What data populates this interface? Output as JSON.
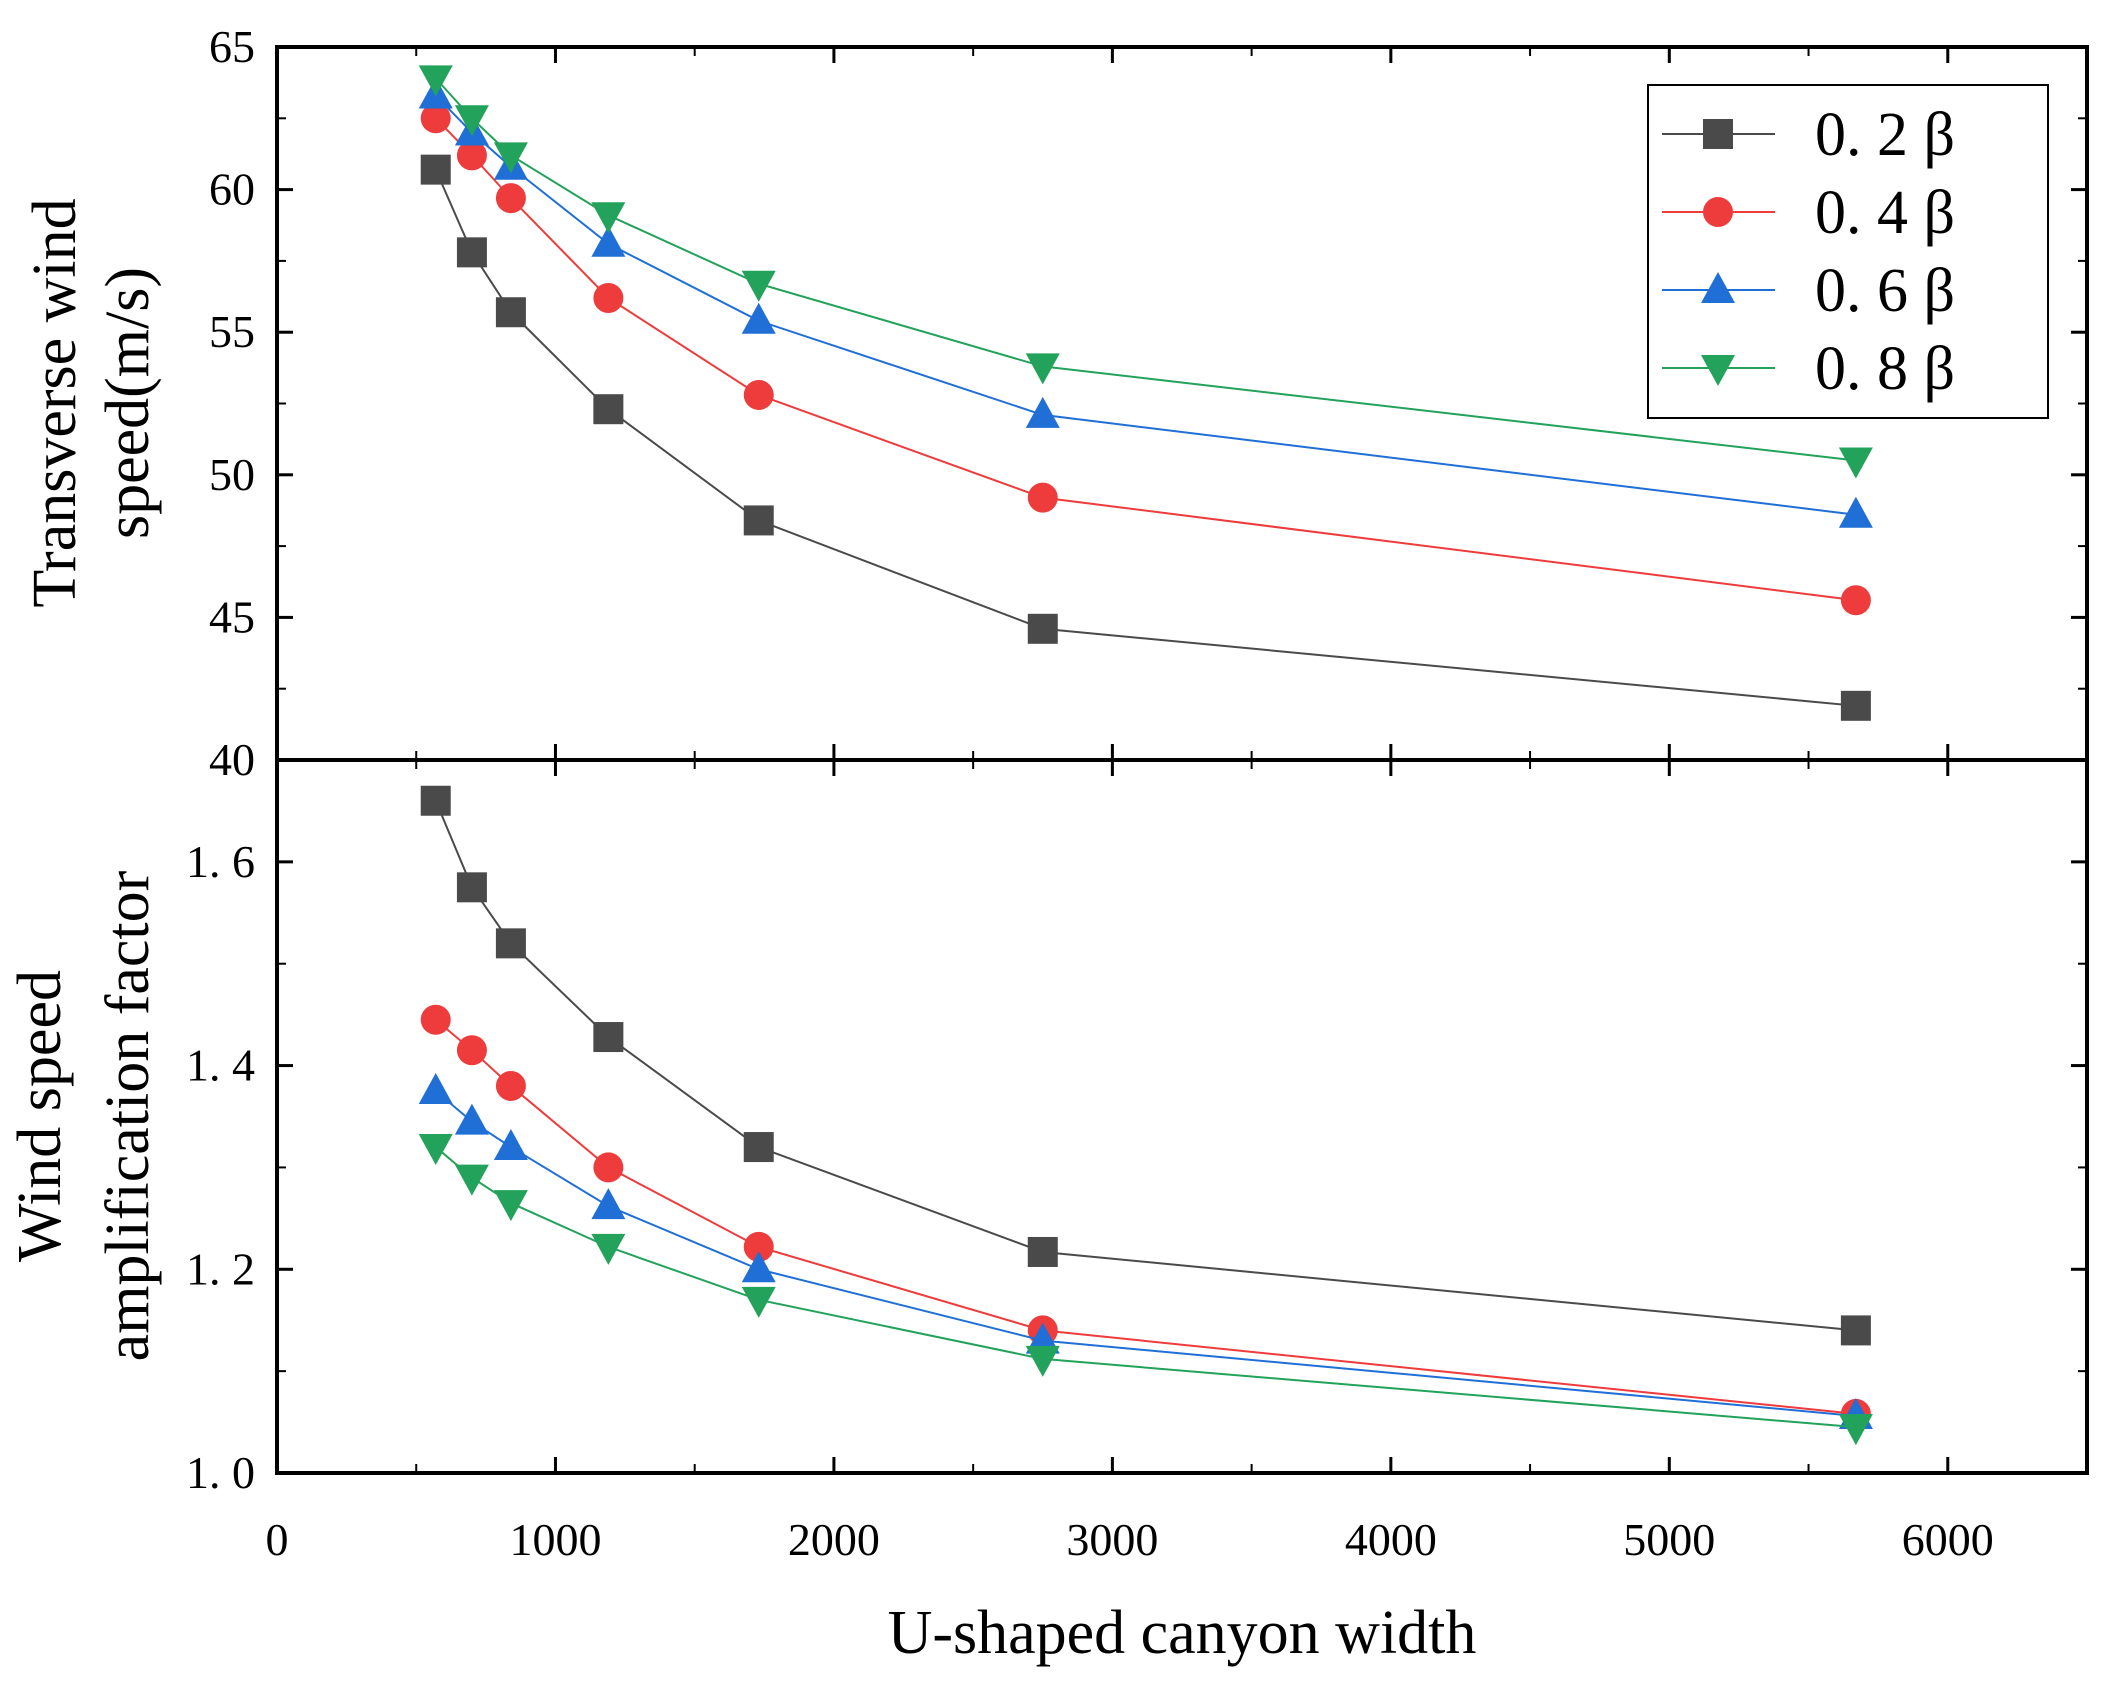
{
  "chart_data": [
    {
      "type": "line",
      "panel": "top",
      "ylabel_lines": [
        "Transverse wind",
        "speed(m/s)"
      ],
      "ylim": [
        40,
        65
      ],
      "yticks": [
        40,
        45,
        50,
        55,
        60,
        65
      ],
      "x": [
        570,
        700,
        840,
        1190,
        1730,
        2750,
        5670
      ],
      "series": [
        {
          "name": "0.2β",
          "color": "#4a4a4a",
          "marker": "square",
          "values": [
            60.7,
            57.8,
            55.7,
            52.3,
            48.4,
            44.6,
            41.9
          ]
        },
        {
          "name": "0.4β",
          "color": "#ee3b3b",
          "marker": "circle",
          "values": [
            62.5,
            61.2,
            59.7,
            56.2,
            52.8,
            49.2,
            45.6
          ]
        },
        {
          "name": "0.6β",
          "color": "#1f6fd6",
          "marker": "triangle-up",
          "values": [
            63.3,
            62.0,
            60.8,
            58.1,
            55.4,
            52.1,
            48.6
          ]
        },
        {
          "name": "0.8β",
          "color": "#22a25a",
          "marker": "triangle-down",
          "values": [
            63.9,
            62.5,
            61.2,
            59.1,
            56.7,
            53.8,
            50.5
          ]
        }
      ],
      "legend": {
        "position": "top-right",
        "labels": [
          "0. 2 β",
          "0. 4 β",
          "0. 6 β",
          "0. 8 β"
        ]
      }
    },
    {
      "type": "line",
      "panel": "bottom",
      "ylabel_lines": [
        "Wind speed",
        "amplification factor"
      ],
      "ylim": [
        1.0,
        1.7
      ],
      "yticks": [
        1.0,
        1.2,
        1.4,
        1.6
      ],
      "ytick_labels": [
        "1. 0",
        "1. 2",
        "1. 4",
        "1. 6"
      ],
      "x": [
        570,
        700,
        840,
        1190,
        1730,
        2750,
        5670
      ],
      "series": [
        {
          "name": "0.2β",
          "color": "#4a4a4a",
          "marker": "square",
          "values": [
            1.66,
            1.575,
            1.52,
            1.428,
            1.32,
            1.217,
            1.14
          ]
        },
        {
          "name": "0.4β",
          "color": "#ee3b3b",
          "marker": "circle",
          "values": [
            1.445,
            1.415,
            1.38,
            1.3,
            1.222,
            1.14,
            1.058
          ]
        },
        {
          "name": "0.6β",
          "color": "#1f6fd6",
          "marker": "triangle-up",
          "values": [
            1.375,
            1.345,
            1.32,
            1.262,
            1.2,
            1.13,
            1.056
          ]
        },
        {
          "name": "0.8β",
          "color": "#22a25a",
          "marker": "triangle-down",
          "values": [
            1.32,
            1.29,
            1.265,
            1.222,
            1.17,
            1.112,
            1.045
          ]
        }
      ]
    }
  ],
  "shared_x_axis": {
    "xlabel": "U-shaped canyon width",
    "xlim": [
      0,
      6500
    ],
    "xticks": [
      0,
      1000,
      2000,
      3000,
      4000,
      5000,
      6000
    ]
  }
}
